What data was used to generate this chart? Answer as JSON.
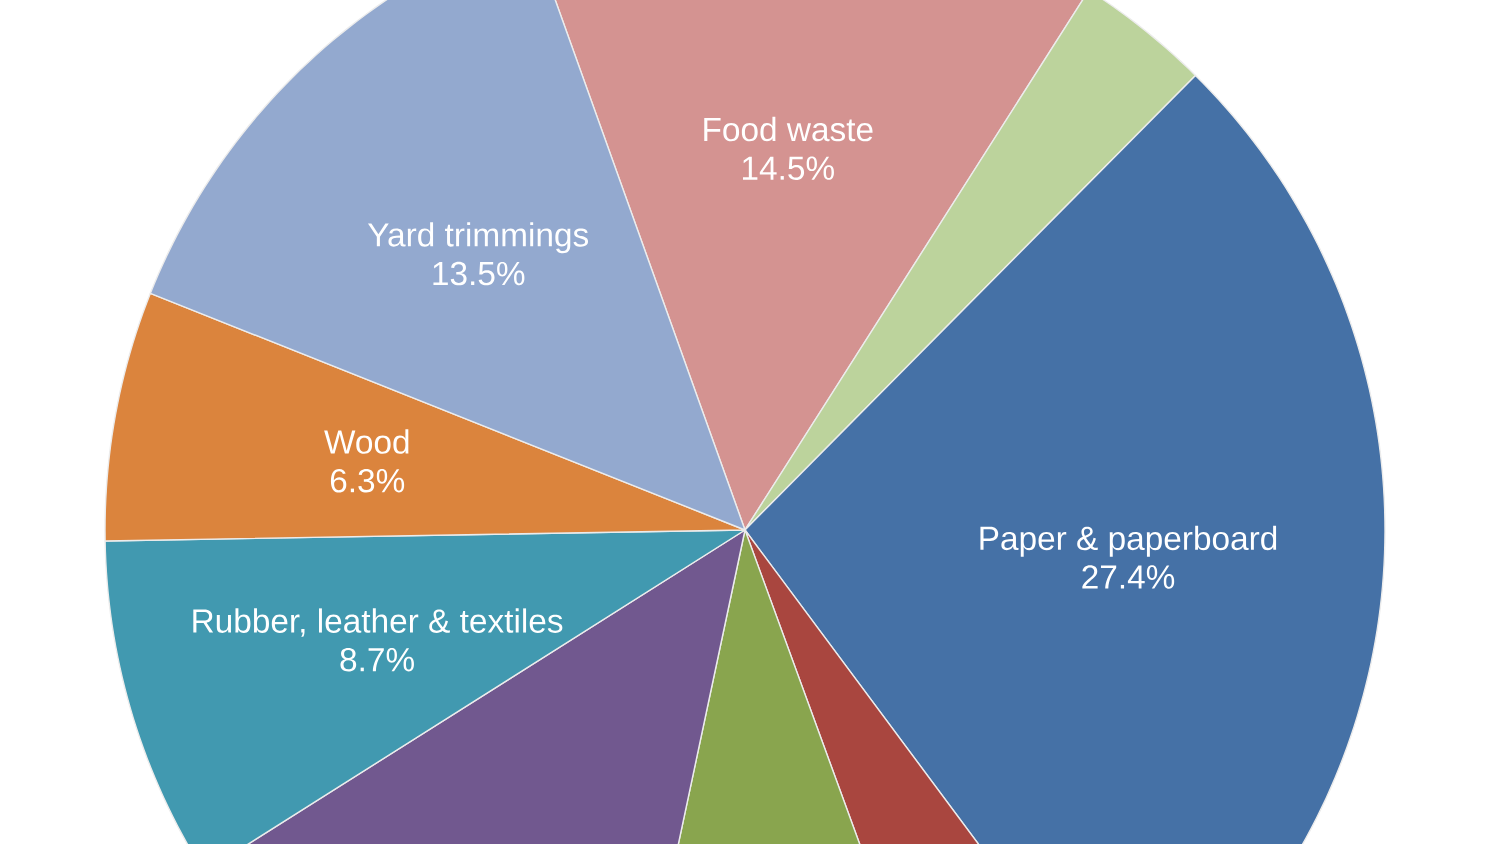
{
  "chart_data": {
    "type": "pie",
    "categories": [
      "Food waste",
      null,
      "Paper & paperboard",
      null,
      null,
      null,
      "Rubber, leather & textiles",
      "Wood",
      "Yard trimmings"
    ],
    "values": [
      14.5,
      3.4,
      27.4,
      4.6,
      8.9,
      12.7,
      8.7,
      6.3,
      13.5
    ],
    "value_labels": [
      "14.5%",
      null,
      "27.4%",
      null,
      null,
      null,
      "8.7%",
      "6.3%",
      "13.5%"
    ],
    "colors": [
      "#d49391",
      "#bcd39c",
      "#4571a6",
      "#a9463f",
      "#89a54e",
      "#71588f",
      "#4199b0",
      "#db843d",
      "#93a9cf"
    ]
  }
}
